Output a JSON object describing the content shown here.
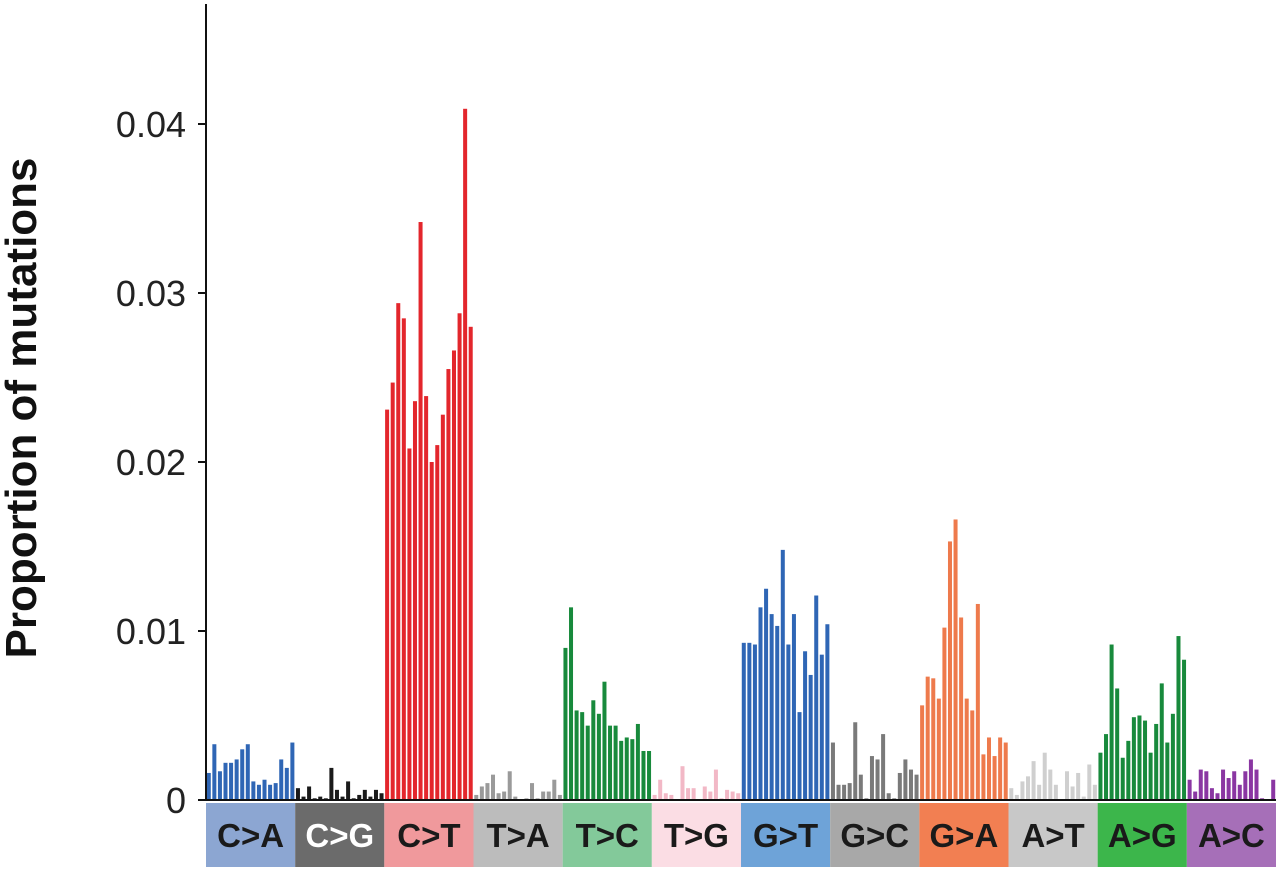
{
  "chart_data": {
    "type": "bar",
    "title": "",
    "xlabel": "",
    "ylabel": "Proportion of mutations",
    "ylim": [
      0,
      0.047
    ],
    "yticks": [
      0,
      0.01,
      0.02,
      0.03,
      0.04
    ],
    "ytick_labels": [
      "0",
      "0.01",
      "0.02",
      "0.03",
      "0.04"
    ],
    "grid": false,
    "legend": "none",
    "groups": [
      {
        "label": "C>A",
        "bar_color": "#2f66b5",
        "box_color": "#8ca6d2",
        "text_color": "#1a1a1a",
        "values": [
          0.0016,
          0.0033,
          0.0017,
          0.0022,
          0.0022,
          0.0024,
          0.003,
          0.0033,
          0.0011,
          0.0009,
          0.0012,
          0.0009,
          0.001,
          0.0024,
          0.0019,
          0.0034
        ]
      },
      {
        "label": "C>G",
        "bar_color": "#1a1a1a",
        "box_color": "#6b6b6b",
        "text_color": "#ffffff",
        "values": [
          0.0007,
          0.0002,
          0.0008,
          0.0001,
          0.0002,
          0.0001,
          0.0019,
          0.0006,
          0.0002,
          0.0011,
          0.0001,
          0.0003,
          0.0006,
          0.0002,
          0.0006,
          0.0004
        ]
      },
      {
        "label": "C>T",
        "bar_color": "#e3262c",
        "box_color": "#f0999c",
        "text_color": "#1a1a1a",
        "values": [
          0.0231,
          0.0247,
          0.0294,
          0.0285,
          0.0208,
          0.0236,
          0.0342,
          0.0239,
          0.02,
          0.021,
          0.0228,
          0.0255,
          0.0266,
          0.0288,
          0.0409,
          0.028
        ]
      },
      {
        "label": "T>A",
        "bar_color": "#9a9a9a",
        "box_color": "#bcbcbc",
        "text_color": "#1a1a1a",
        "values": [
          0.0003,
          0.0008,
          0.001,
          0.0015,
          0.0004,
          0.0005,
          0.0017,
          0.0002,
          0.0,
          0.0001,
          0.001,
          0.0001,
          0.0005,
          0.0005,
          0.0012,
          0.0003
        ]
      },
      {
        "label": "T>C",
        "bar_color": "#188a3c",
        "box_color": "#83c99a",
        "text_color": "#1a1a1a",
        "values": [
          0.009,
          0.0114,
          0.0053,
          0.0052,
          0.0044,
          0.0059,
          0.0051,
          0.007,
          0.0044,
          0.0044,
          0.0035,
          0.0037,
          0.0036,
          0.0045,
          0.0029,
          0.0029
        ]
      },
      {
        "label": "T>G",
        "bar_color": "#f2b8c6",
        "box_color": "#fbdde4",
        "text_color": "#1a1a1a",
        "values": [
          0.0003,
          0.0012,
          0.0004,
          0.0003,
          0.0,
          0.002,
          0.0007,
          0.0007,
          0.0,
          0.0008,
          0.0005,
          0.0018,
          0.0001,
          0.0006,
          0.0005,
          0.0004
        ]
      },
      {
        "label": "G>T",
        "bar_color": "#2f66b5",
        "box_color": "#6ea3d8",
        "text_color": "#1a1a1a",
        "values": [
          0.0093,
          0.0093,
          0.0092,
          0.0114,
          0.0125,
          0.011,
          0.0103,
          0.0148,
          0.0092,
          0.011,
          0.0052,
          0.0088,
          0.0074,
          0.0121,
          0.0086,
          0.0104
        ]
      },
      {
        "label": "G>C",
        "bar_color": "#7a7a7a",
        "box_color": "#a8a8a8",
        "text_color": "#1a1a1a",
        "values": [
          0.0034,
          0.0009,
          0.0009,
          0.001,
          0.0046,
          0.0015,
          0.0001,
          0.0026,
          0.0024,
          0.0039,
          0.0004,
          0.0001,
          0.0016,
          0.0024,
          0.0018,
          0.0015
        ]
      },
      {
        "label": "G>A",
        "bar_color": "#ee7a4c",
        "box_color": "#f27f52",
        "text_color": "#1a1a1a",
        "values": [
          0.0056,
          0.0073,
          0.0072,
          0.006,
          0.0102,
          0.0153,
          0.0166,
          0.0108,
          0.006,
          0.0053,
          0.0116,
          0.0027,
          0.0037,
          0.0026,
          0.0037,
          0.0034
        ]
      },
      {
        "label": "A>T",
        "bar_color": "#cfcfcf",
        "box_color": "#c8c8c8",
        "text_color": "#1a1a1a",
        "values": [
          0.0007,
          0.0003,
          0.0011,
          0.0014,
          0.0023,
          0.0009,
          0.0028,
          0.0018,
          0.0009,
          0.0,
          0.0017,
          0.0008,
          0.0016,
          0.0002,
          0.0021,
          0.0009
        ]
      },
      {
        "label": "A>G",
        "bar_color": "#188a3c",
        "box_color": "#3cb64b",
        "text_color": "#1a1a1a",
        "values": [
          0.0028,
          0.0039,
          0.0092,
          0.0066,
          0.0025,
          0.0035,
          0.0049,
          0.005,
          0.0047,
          0.0028,
          0.0045,
          0.0069,
          0.0034,
          0.0051,
          0.0097,
          0.0083
        ]
      },
      {
        "label": "A>C",
        "bar_color": "#8a36a2",
        "box_color": "#a66fb8",
        "text_color": "#1a1a1a",
        "values": [
          0.0012,
          0.0005,
          0.0018,
          0.0017,
          0.0007,
          0.0004,
          0.0018,
          0.0013,
          0.0017,
          0.0009,
          0.0017,
          0.0024,
          0.0018,
          0.0001,
          0.0,
          0.0012
        ]
      }
    ]
  }
}
